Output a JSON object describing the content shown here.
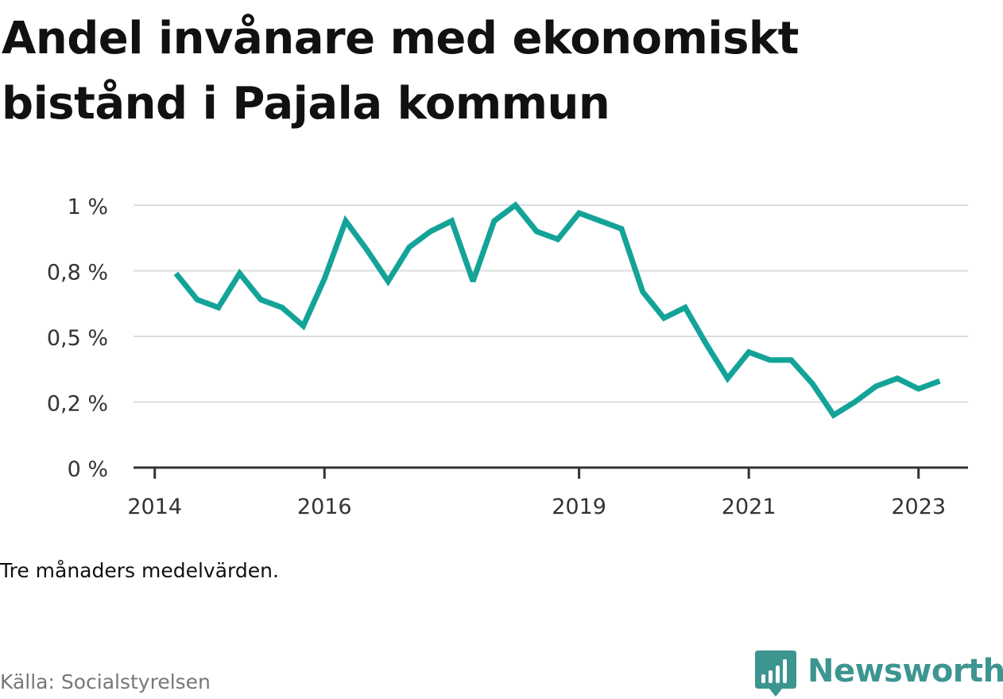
{
  "title": "Andel invånare med ekonomiskt bistånd i Pajala kommun",
  "note": "Tre månaders medelvärden.",
  "source": "Källa: Socialstyrelsen",
  "brand": "Newsworthy",
  "colors": {
    "line": "#14a398",
    "grid": "#dddddd",
    "axis": "#333333",
    "text": "#111111",
    "brand": "#3d9590"
  },
  "chart_data": {
    "type": "line",
    "title": "Andel invånare med ekonomiskt bistånd i Pajala kommun",
    "xlabel": "",
    "ylabel": "",
    "grid": true,
    "ylim": [
      0,
      1
    ],
    "yticks": [
      {
        "value": 0,
        "label": "0 %"
      },
      {
        "value": 0.25,
        "label": "0,2 %"
      },
      {
        "value": 0.5,
        "label": "0,5 %"
      },
      {
        "value": 0.75,
        "label": "0,8 %"
      },
      {
        "value": 1,
        "label": "1 %"
      }
    ],
    "xlim": [
      "2013-10",
      "2023-08"
    ],
    "xticks": [
      {
        "value": "2014-01",
        "label": "2014"
      },
      {
        "value": "2016-01",
        "label": "2016"
      },
      {
        "value": "2019-01",
        "label": "2019"
      },
      {
        "value": "2021-01",
        "label": "2021"
      },
      {
        "value": "2023-01",
        "label": "2023"
      }
    ],
    "x": [
      "2014-04",
      "2014-07",
      "2014-10",
      "2015-01",
      "2015-04",
      "2015-07",
      "2015-10",
      "2016-01",
      "2016-04",
      "2016-07",
      "2016-10",
      "2017-01",
      "2017-04",
      "2017-07",
      "2017-10",
      "2018-01",
      "2018-04",
      "2018-07",
      "2018-10",
      "2019-01",
      "2019-04",
      "2019-07",
      "2019-10",
      "2020-01",
      "2020-04",
      "2020-07",
      "2020-10",
      "2021-01",
      "2021-04",
      "2021-07",
      "2021-10",
      "2022-01",
      "2022-04",
      "2022-07",
      "2022-10",
      "2023-01",
      "2023-04"
    ],
    "series": [
      {
        "values": [
          0.74,
          0.64,
          0.61,
          0.74,
          0.64,
          0.61,
          0.54,
          0.72,
          0.94,
          0.83,
          0.71,
          0.84,
          0.9,
          0.94,
          0.71,
          0.94,
          1.0,
          0.9,
          0.87,
          0.97,
          0.94,
          0.91,
          0.67,
          0.57,
          0.61,
          0.47,
          0.34,
          0.44,
          0.41,
          0.41,
          0.32,
          0.2,
          0.25,
          0.31,
          0.34,
          0.3,
          0.33
        ]
      }
    ]
  }
}
